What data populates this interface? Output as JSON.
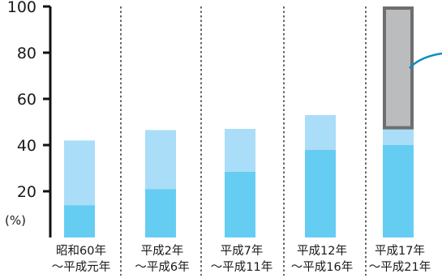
{
  "chart_data": {
    "type": "bar",
    "stacked": true,
    "y_ticks": [
      "20",
      "40",
      "60",
      "80",
      "100"
    ],
    "y_unit": "(%)",
    "ylim": [
      0,
      100
    ],
    "categories": [
      [
        "昭和60年",
        "〜平成元年"
      ],
      [
        "平成2年",
        "〜平成6年"
      ],
      [
        "平成7年",
        "〜平成11年"
      ],
      [
        "平成12年",
        "〜平成16年"
      ],
      [
        "平成17年",
        "〜平成21年"
      ]
    ],
    "series": [
      {
        "values": [
          14,
          21,
          28.5,
          38,
          40
        ],
        "color": "#66cdf2"
      },
      {
        "values": [
          28,
          25.5,
          18.5,
          15,
          7.5
        ],
        "color": "#aaddf7"
      },
      {
        "values": [
          0,
          0,
          0,
          0,
          52.5
        ],
        "color": "#bbbcbe",
        "outline": "#6e6e6e"
      }
    ],
    "grid": false,
    "category_separators": "dotted"
  }
}
